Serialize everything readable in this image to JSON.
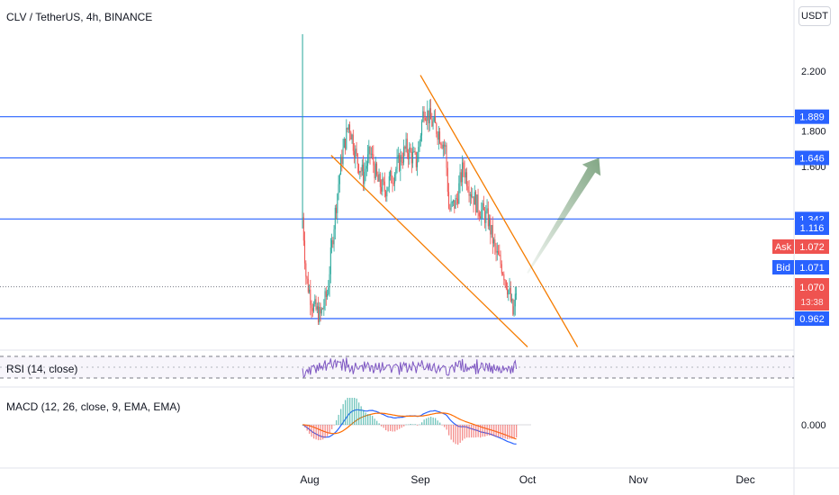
{
  "header": {
    "symbol_title": "CLV / TetherUS, 4h, BINANCE",
    "currency_button": "USDT"
  },
  "colors": {
    "up": "#26a69a",
    "down": "#ef5350",
    "level_line": "#2962ff",
    "trendline": "#f57c00",
    "arrow": "#1b5e20",
    "rsi": "#7e57c2",
    "macd": "#2962ff",
    "signal": "#ff6d00"
  },
  "price_axis": {
    "ticks": [
      "2.200",
      "1.800",
      "1.600"
    ],
    "scale": "log"
  },
  "level_badges": [
    {
      "value": "1.889"
    },
    {
      "value": "1.646"
    },
    {
      "value": "1.342"
    },
    {
      "value": "1.116"
    },
    {
      "value": "0.962"
    }
  ],
  "quote_badges": {
    "ask_label": "Ask",
    "ask_value": "1.072",
    "bid_label": "Bid",
    "bid_value": "1.071",
    "last_value": "1.070",
    "countdown": "13:38"
  },
  "panes": {
    "rsi_label": "RSI (14, close)",
    "macd_label": "MACD (12, 26, close, 9, EMA, EMA)",
    "macd_tick": "0.000"
  },
  "time_axis": {
    "labels": [
      "Aug",
      "Sep",
      "Oct",
      "Nov",
      "Dec"
    ]
  },
  "chart_data": {
    "type": "candlestick",
    "title": "CLV / TetherUS, 4h, BINANCE",
    "y_scale": "log",
    "horizontal_levels": [
      1.889,
      1.646,
      1.342,
      0.962
    ],
    "price_path": [
      {
        "date": "2021-07-30",
        "price": 1.35
      },
      {
        "date": "2021-07-31",
        "price": 1.1
      },
      {
        "date": "2021-08-02",
        "price": 1.0
      },
      {
        "date": "2021-08-04",
        "price": 0.97
      },
      {
        "date": "2021-08-06",
        "price": 1.05
      },
      {
        "date": "2021-08-08",
        "price": 1.35
      },
      {
        "date": "2021-08-10",
        "price": 1.65
      },
      {
        "date": "2021-08-12",
        "price": 1.85
      },
      {
        "date": "2021-08-14",
        "price": 1.65
      },
      {
        "date": "2021-08-16",
        "price": 1.55
      },
      {
        "date": "2021-08-18",
        "price": 1.68
      },
      {
        "date": "2021-08-20",
        "price": 1.52
      },
      {
        "date": "2021-08-22",
        "price": 1.48
      },
      {
        "date": "2021-08-25",
        "price": 1.58
      },
      {
        "date": "2021-08-28",
        "price": 1.7
      },
      {
        "date": "2021-08-31",
        "price": 1.62
      },
      {
        "date": "2021-09-02",
        "price": 1.95
      },
      {
        "date": "2021-09-04",
        "price": 1.86
      },
      {
        "date": "2021-09-06",
        "price": 1.8
      },
      {
        "date": "2021-09-08",
        "price": 1.7
      },
      {
        "date": "2021-09-09",
        "price": 1.38
      },
      {
        "date": "2021-09-11",
        "price": 1.42
      },
      {
        "date": "2021-09-13",
        "price": 1.6
      },
      {
        "date": "2021-09-15",
        "price": 1.48
      },
      {
        "date": "2021-09-17",
        "price": 1.4
      },
      {
        "date": "2021-09-20",
        "price": 1.34
      },
      {
        "date": "2021-09-22",
        "price": 1.2
      },
      {
        "date": "2021-09-24",
        "price": 1.14
      },
      {
        "date": "2021-09-26",
        "price": 1.04
      },
      {
        "date": "2021-09-27",
        "price": 0.97
      },
      {
        "date": "2021-09-28",
        "price": 1.07
      }
    ],
    "trendlines": [
      {
        "from": {
          "date": "2021-08-07",
          "price": 1.66
        },
        "to": {
          "date": "2021-10-01",
          "price": 0.875
        }
      },
      {
        "from": {
          "date": "2021-09-01",
          "price": 2.17
        },
        "to": {
          "date": "2021-10-15",
          "price": 0.875
        }
      }
    ],
    "projection_arrow": {
      "from": {
        "date": "2021-10-01",
        "price": 1.12
      },
      "to": {
        "date": "2021-10-21",
        "price": 1.646
      }
    }
  }
}
